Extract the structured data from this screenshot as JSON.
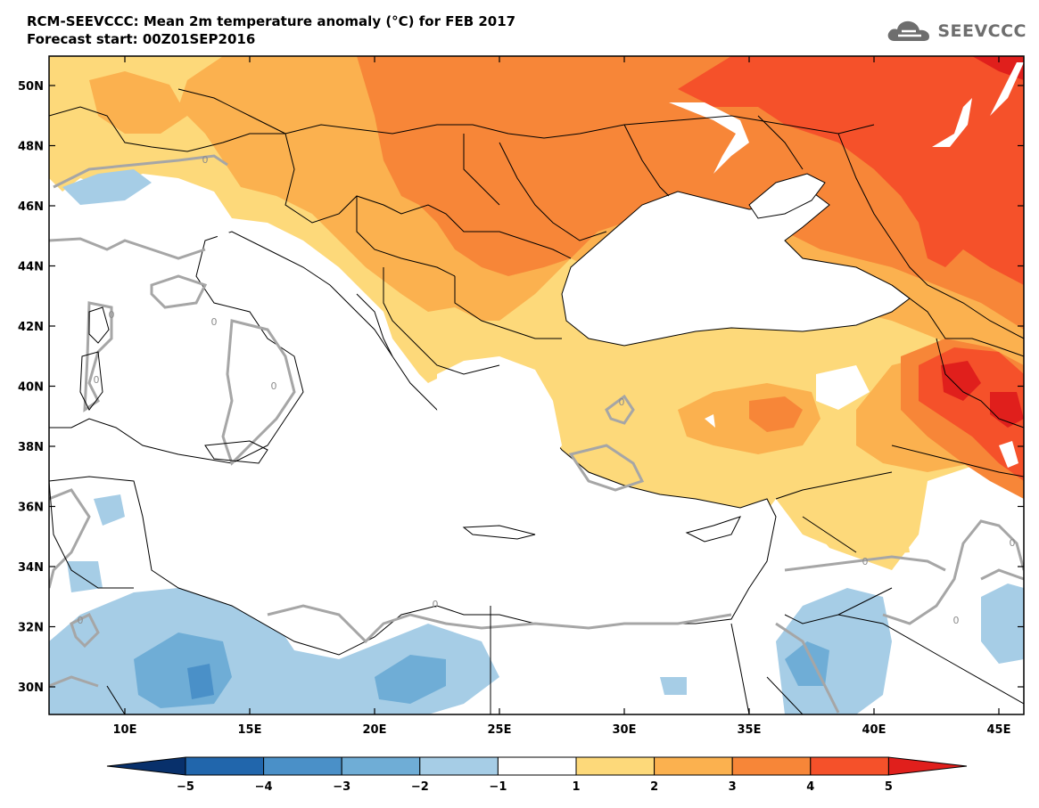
{
  "title": {
    "line1": "RCM-SEEVCCC: Mean 2m temperature anomaly (°C) for FEB 2017",
    "line2": "Forecast start: 00Z01SEP2016"
  },
  "logo": {
    "text": "SEEVCCC",
    "icon": "cloud-logo-icon"
  },
  "map": {
    "lat_ticks": [
      "50N",
      "48N",
      "46N",
      "44N",
      "42N",
      "40N",
      "38N",
      "36N",
      "34N",
      "32N",
      "30N"
    ],
    "lon_ticks": [
      "10E",
      "15E",
      "20E",
      "25E",
      "30E",
      "35E",
      "40E",
      "45E"
    ],
    "contour_labels": [
      "0",
      "0",
      "0",
      "0",
      "0",
      "0",
      "0",
      "0",
      "0",
      "0",
      "0"
    ]
  },
  "colorbar": {
    "ticks": [
      "−5",
      "−4",
      "−3",
      "−2",
      "−1",
      "1",
      "2",
      "3",
      "4",
      "5"
    ],
    "colors": [
      "#08306b",
      "#2166ac",
      "#4a90c8",
      "#6fadd6",
      "#a6cde6",
      "#ffffff",
      "#fdd97a",
      "#fbb14f",
      "#f78638",
      "#f5512a",
      "#e01f1c"
    ]
  },
  "palette": {
    "land_white": "#ffffff",
    "sea": "#ffffff",
    "border": "#000000",
    "contour": "#a6a6a6"
  }
}
